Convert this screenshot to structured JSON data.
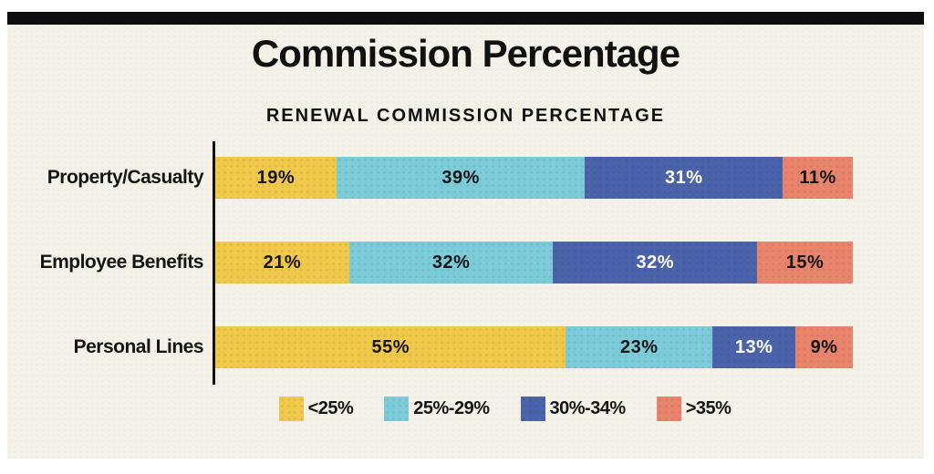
{
  "header": {
    "title": "Commission Percentage"
  },
  "chart_data": {
    "type": "bar",
    "variant": "stacked-horizontal",
    "title": "Commission Percentage",
    "subtitle": "RENEWAL COMMISSION PERCENTAGE",
    "categories": [
      "Property/Casualty",
      "Employee Benefits",
      "Personal Lines"
    ],
    "series": [
      {
        "name": "<25%",
        "color": "#f0c94a",
        "label_color": "#151515",
        "values": [
          19,
          21,
          55
        ]
      },
      {
        "name": "25%-29%",
        "color": "#7ccbd9",
        "label_color": "#151515",
        "values": [
          39,
          32,
          23
        ]
      },
      {
        "name": "30%-34%",
        "color": "#4a63aa",
        "label_color": "#ffffff",
        "values": [
          31,
          32,
          13
        ]
      },
      {
        "name": ">35%",
        "color": "#e8846c",
        "label_color": "#151515",
        "values": [
          11,
          15,
          9
        ]
      }
    ],
    "value_suffix": "%",
    "xlim": [
      0,
      100
    ],
    "legend_position": "bottom",
    "grid": false
  },
  "colors": {
    "background": "#f4f1e8",
    "frame_bar": "#0d0d0d",
    "axis": "#111111",
    "page_margin": "#ffffff"
  }
}
